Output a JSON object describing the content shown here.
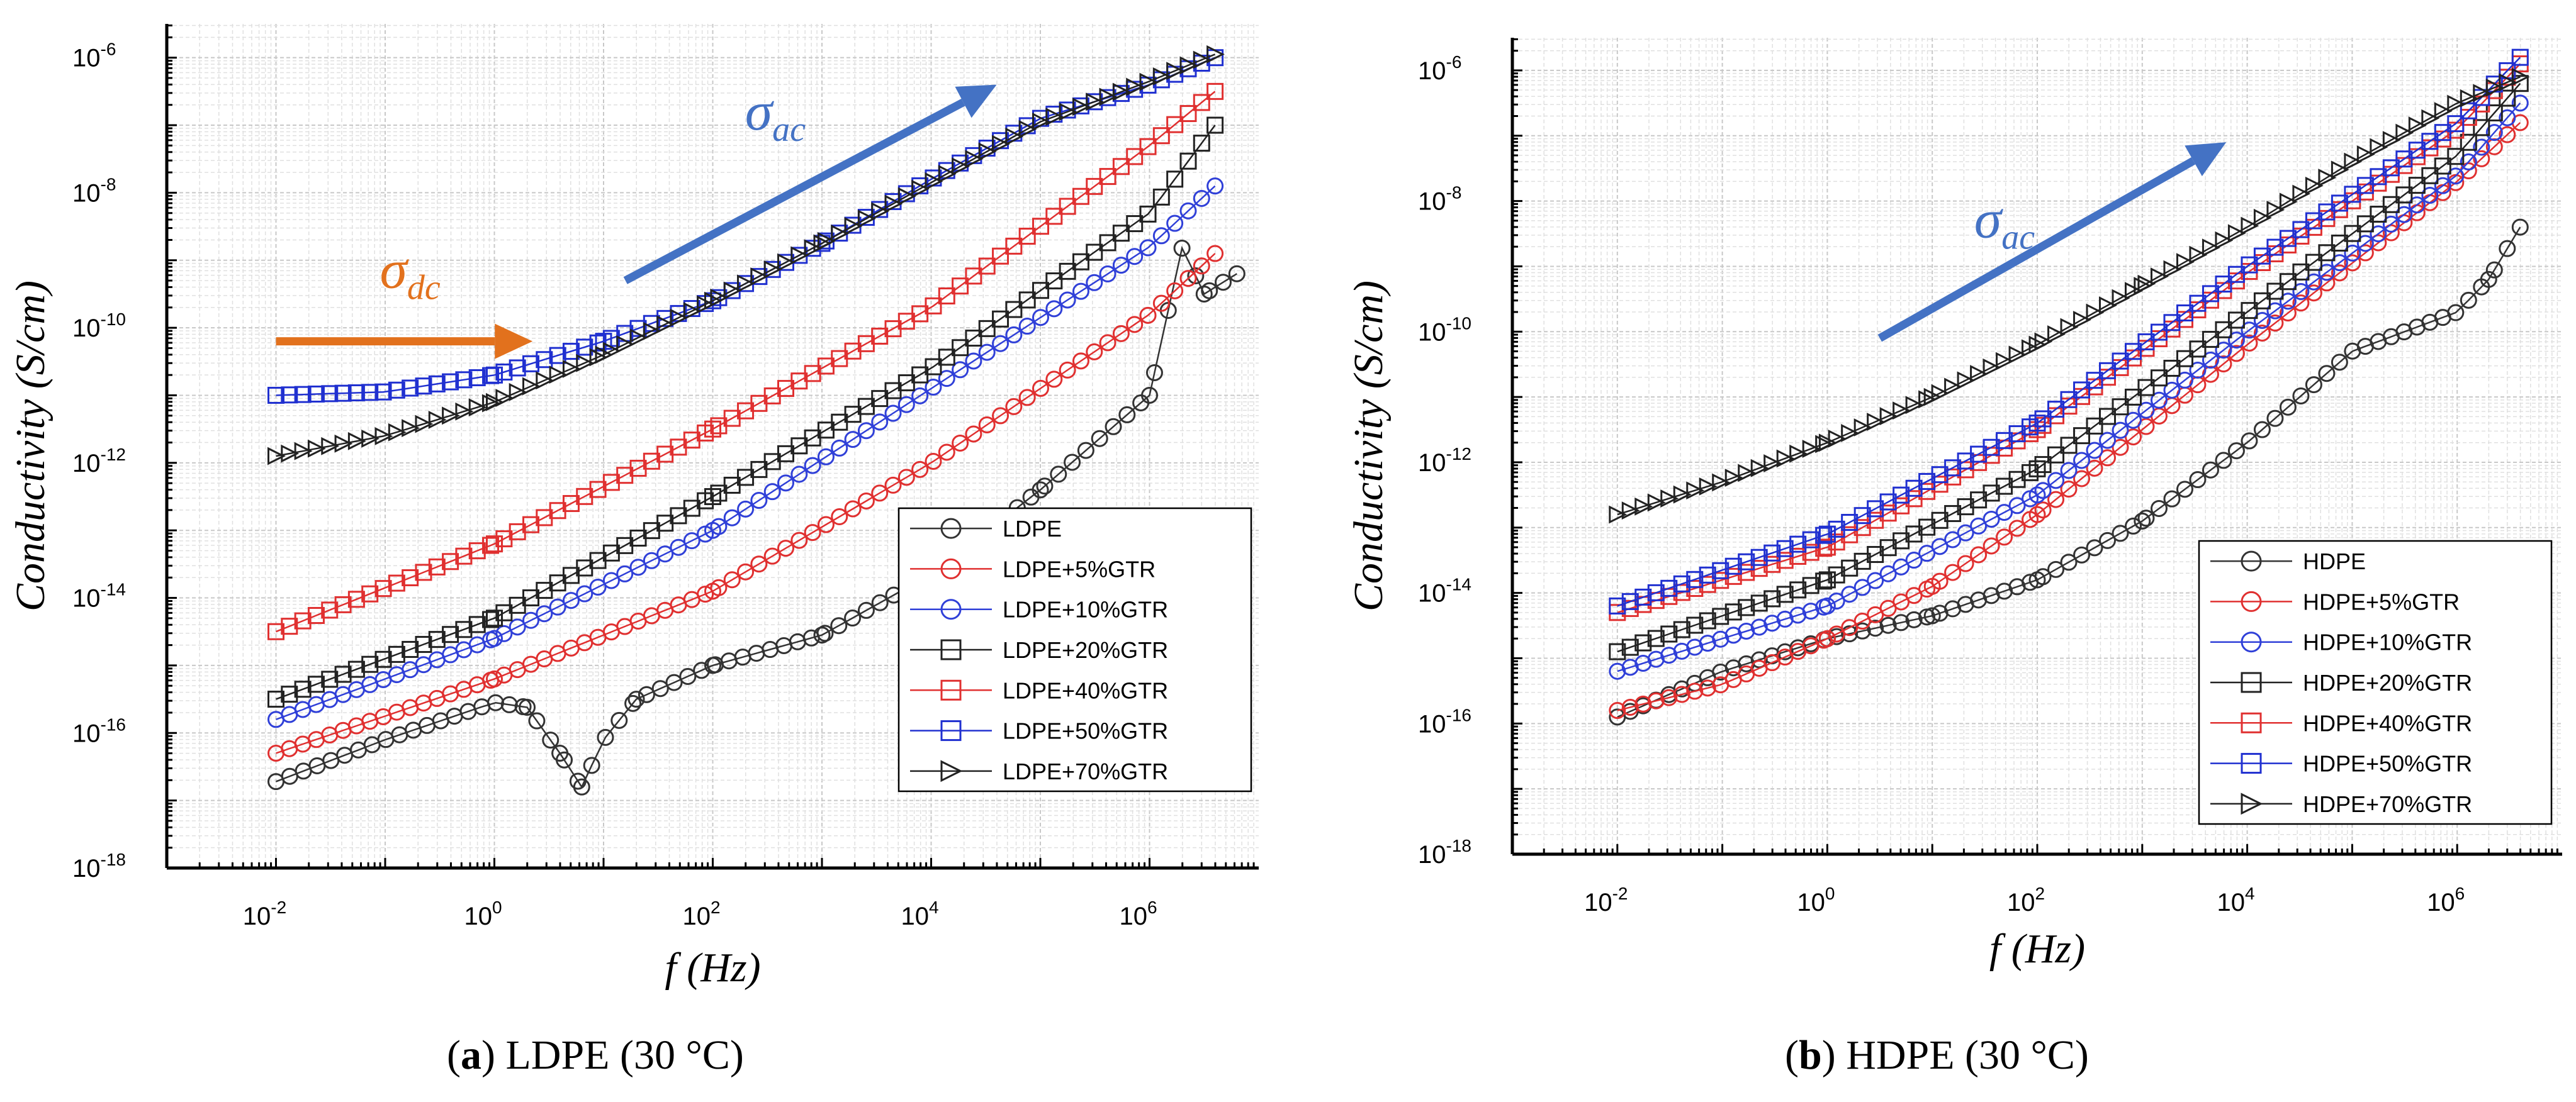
{
  "chart_data": [
    {
      "type": "line",
      "panel_label": "a",
      "caption_rest": " LDPE (30 °C)",
      "xlabel": "f (Hz)",
      "ylabel": "Conductivity (S/cm)",
      "xscale": "log",
      "yscale": "log",
      "xlim_exp": [
        -3,
        7
      ],
      "ylim_exp": [
        -18,
        -5.5
      ],
      "xticks": [
        -2,
        0,
        2,
        4,
        6
      ],
      "yticks": [
        -18,
        -16,
        -14,
        -12,
        -10,
        -8,
        -6
      ],
      "grid": true,
      "legend_position": "bottom-right",
      "annotations": [
        {
          "symbol": "σ",
          "sub": "dc",
          "color": "#e2711d",
          "arrow_from": [
            -2,
            -10.2
          ],
          "arrow_to": [
            0.35,
            -10.2
          ]
        },
        {
          "symbol": "σ",
          "sub": "ac",
          "color": "#4472c4",
          "arrow_from": [
            1.2,
            -9.3
          ],
          "arrow_to": [
            4.6,
            -6.4
          ]
        }
      ],
      "series": [
        {
          "name": "LDPE",
          "color": "#333333",
          "marker": "circle",
          "points": [
            [
              -2,
              -16.72
            ],
            [
              -1,
              -16.1
            ],
            [
              0,
              -15.55
            ],
            [
              0.3,
              -15.62
            ],
            [
              0.6,
              -16.3
            ],
            [
              0.8,
              -16.8
            ],
            [
              1,
              -16.1
            ],
            [
              1.3,
              -15.5
            ],
            [
              2,
              -15.0
            ],
            [
              3,
              -14.55
            ],
            [
              4,
              -13.65
            ],
            [
              5,
              -12.4
            ],
            [
              6,
              -11.0
            ],
            [
              6.3,
              -8.8
            ],
            [
              6.5,
              -9.5
            ],
            [
              6.8,
              -9.2
            ]
          ]
        },
        {
          "name": "LDPE+5%GTR",
          "color": "#e03030",
          "marker": "circle",
          "points": [
            [
              -2,
              -16.3
            ],
            [
              0,
              -15.2
            ],
            [
              2,
              -13.9
            ],
            [
              4,
              -12.0
            ],
            [
              6,
              -9.8
            ],
            [
              6.6,
              -8.9
            ]
          ]
        },
        {
          "name": "LDPE+10%GTR",
          "color": "#3040d8",
          "marker": "circle",
          "points": [
            [
              -2,
              -15.8
            ],
            [
              0,
              -14.6
            ],
            [
              2,
              -13.0
            ],
            [
              4,
              -10.9
            ],
            [
              6,
              -8.8
            ],
            [
              6.6,
              -7.9
            ]
          ]
        },
        {
          "name": "LDPE+20%GTR",
          "color": "#222222",
          "marker": "square",
          "points": [
            [
              -2,
              -15.5
            ],
            [
              0,
              -14.3
            ],
            [
              2,
              -12.5
            ],
            [
              4,
              -10.6
            ],
            [
              6,
              -8.3
            ],
            [
              6.6,
              -7.0
            ]
          ]
        },
        {
          "name": "LDPE+40%GTR",
          "color": "#e03030",
          "marker": "square",
          "points": [
            [
              -2,
              -14.5
            ],
            [
              0,
              -13.2
            ],
            [
              2,
              -11.5
            ],
            [
              4,
              -9.7
            ],
            [
              6,
              -7.3
            ],
            [
              6.6,
              -6.5
            ]
          ]
        },
        {
          "name": "LDPE+50%GTR",
          "color": "#2030d0",
          "marker": "square",
          "points": [
            [
              -2,
              -11.0
            ],
            [
              -1,
              -10.95
            ],
            [
              0,
              -10.7
            ],
            [
              1,
              -10.2
            ],
            [
              2,
              -9.6
            ],
            [
              3,
              -8.75
            ],
            [
              4,
              -7.8
            ],
            [
              5,
              -6.9
            ],
            [
              6,
              -6.4
            ],
            [
              6.6,
              -6.0
            ]
          ]
        },
        {
          "name": "LDPE+70%GTR",
          "color": "#222222",
          "marker": "triangle",
          "points": [
            [
              -2,
              -11.9
            ],
            [
              -1,
              -11.6
            ],
            [
              0,
              -11.1
            ],
            [
              1,
              -10.4
            ],
            [
              2,
              -9.6
            ],
            [
              3,
              -8.75
            ],
            [
              4,
              -7.85
            ],
            [
              5,
              -6.95
            ],
            [
              6,
              -6.35
            ],
            [
              6.6,
              -5.95
            ]
          ]
        }
      ]
    },
    {
      "type": "line",
      "panel_label": "b",
      "caption_rest": " HDPE (30 °C)",
      "xlabel": "f (Hz)",
      "ylabel": "Conductivity (S/cm)",
      "xscale": "log",
      "yscale": "log",
      "xlim_exp": [
        -3,
        7
      ],
      "ylim_exp": [
        -18,
        -5.5
      ],
      "xticks": [
        -2,
        0,
        2,
        4,
        6
      ],
      "yticks": [
        -18,
        -16,
        -14,
        -12,
        -10,
        -8,
        -6
      ],
      "grid": true,
      "legend_position": "bottom-right",
      "annotations": [
        {
          "symbol": "σ",
          "sub": "ac",
          "color": "#4472c4",
          "arrow_from": [
            0.5,
            -10.1
          ],
          "arrow_to": [
            3.8,
            -7.1
          ]
        }
      ],
      "series": [
        {
          "name": "HDPE",
          "color": "#333333",
          "marker": "circle",
          "points": [
            [
              -2,
              -15.9
            ],
            [
              -1,
              -15.2
            ],
            [
              0,
              -14.7
            ],
            [
              1,
              -14.35
            ],
            [
              2,
              -13.8
            ],
            [
              3,
              -12.9
            ],
            [
              4,
              -11.7
            ],
            [
              5,
              -10.3
            ],
            [
              6,
              -9.7
            ],
            [
              6.3,
              -9.2
            ],
            [
              6.6,
              -8.4
            ]
          ]
        },
        {
          "name": "HDPE+5%GTR",
          "color": "#e03030",
          "marker": "circle",
          "points": [
            [
              -2,
              -15.8
            ],
            [
              -1,
              -15.4
            ],
            [
              0,
              -14.7
            ],
            [
              1,
              -13.9
            ],
            [
              2,
              -12.8
            ],
            [
              4,
              -10.2
            ],
            [
              6,
              -7.7
            ],
            [
              6.6,
              -6.8
            ]
          ]
        },
        {
          "name": "HDPE+10%GTR",
          "color": "#3040d8",
          "marker": "circle",
          "points": [
            [
              -2,
              -15.2
            ],
            [
              0,
              -14.2
            ],
            [
              2,
              -12.5
            ],
            [
              4,
              -10.0
            ],
            [
              6,
              -7.6
            ],
            [
              6.6,
              -6.5
            ]
          ]
        },
        {
          "name": "HDPE+20%GTR",
          "color": "#222222",
          "marker": "square",
          "points": [
            [
              -2,
              -14.9
            ],
            [
              0,
              -13.8
            ],
            [
              2,
              -12.1
            ],
            [
              4,
              -9.7
            ],
            [
              6,
              -7.3
            ],
            [
              6.6,
              -6.2
            ]
          ]
        },
        {
          "name": "HDPE+40%GTR",
          "color": "#e03030",
          "marker": "square",
          "points": [
            [
              -2,
              -14.3
            ],
            [
              0,
              -13.3
            ],
            [
              2,
              -11.5
            ],
            [
              4,
              -9.1
            ],
            [
              6,
              -6.9
            ],
            [
              6.6,
              -5.9
            ]
          ]
        },
        {
          "name": "HDPE+50%GTR",
          "color": "#2030d0",
          "marker": "square",
          "points": [
            [
              -2,
              -14.2
            ],
            [
              0,
              -13.1
            ],
            [
              2,
              -11.4
            ],
            [
              4,
              -9.0
            ],
            [
              6,
              -6.8
            ],
            [
              6.6,
              -5.8
            ]
          ]
        },
        {
          "name": "HDPE+70%GTR",
          "color": "#222222",
          "marker": "triangle",
          "points": [
            [
              -2,
              -12.8
            ],
            [
              -1,
              -12.3
            ],
            [
              0,
              -11.7
            ],
            [
              1,
              -11.0
            ],
            [
              2,
              -10.2
            ],
            [
              3,
              -9.3
            ],
            [
              4,
              -8.4
            ],
            [
              5,
              -7.4
            ],
            [
              6,
              -6.5
            ],
            [
              6.6,
              -6.1
            ]
          ]
        }
      ]
    }
  ]
}
